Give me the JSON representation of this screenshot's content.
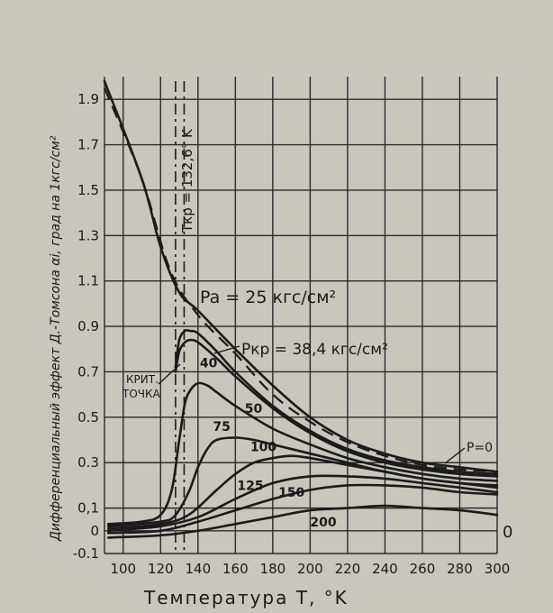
{
  "chart_data": {
    "type": "line",
    "ylabel": "Дифференциальный эффект Д.-Томсона αi, град на 1кгс/см²",
    "xlabel": "Температура T, °K",
    "xlim": [
      90,
      300
    ],
    "ylim": [
      -0.1,
      2.0
    ],
    "x_ticks": [
      100,
      120,
      140,
      160,
      180,
      200,
      220,
      240,
      260,
      280,
      300
    ],
    "x_tick_labels": [
      "100",
      "120",
      "140",
      "160",
      "180",
      "200",
      "220",
      "240",
      "260",
      "280",
      "300"
    ],
    "y_ticks": [
      -0.1,
      0,
      0.1,
      0.3,
      0.5,
      0.7,
      0.9,
      1.1,
      1.3,
      1.5,
      1.7,
      1.9
    ],
    "y_tick_labels": [
      "-0.1",
      "0",
      "0,1",
      "0.3",
      "0.5",
      "0.7",
      "0.9",
      "1.1",
      "1.3",
      "1.5",
      "1.7",
      "1.9"
    ],
    "grid": true,
    "annotations": {
      "critical_temperature": "Tкр = 132,6° K",
      "critical_point": [
        "КРИТ.",
        "ТОЧКА"
      ],
      "p_zero": "P=0",
      "zero_right": "0",
      "pressure_25": "Pa = 25 кгс/см²",
      "pressure_critical": "Pкр = 38,4 кгс/см²"
    },
    "series": [
      {
        "name": "P=0",
        "style": "dash",
        "x": [
          90,
          110,
          125,
          140,
          160,
          180,
          200,
          220,
          240,
          260,
          280,
          300
        ],
        "y": [
          1.95,
          1.55,
          1.15,
          0.95,
          0.78,
          0.6,
          0.48,
          0.39,
          0.33,
          0.29,
          0.27,
          0.26
        ]
      },
      {
        "name": "25",
        "style": "solid",
        "x": [
          90,
          110,
          120,
          130,
          140,
          160,
          180,
          200,
          220,
          240,
          260,
          280,
          300
        ],
        "y": [
          1.98,
          1.55,
          1.25,
          1.05,
          0.97,
          0.8,
          0.64,
          0.5,
          0.4,
          0.34,
          0.3,
          0.28,
          0.26
        ]
      },
      {
        "name": "38,4",
        "style": "solid",
        "x": [
          128,
          130,
          133,
          136,
          140,
          150,
          160,
          180,
          200,
          220,
          240,
          260,
          280,
          300
        ],
        "y": [
          0.72,
          0.84,
          0.88,
          0.88,
          0.87,
          0.79,
          0.7,
          0.55,
          0.44,
          0.36,
          0.31,
          0.28,
          0.26,
          0.25
        ]
      },
      {
        "name": "40",
        "style": "solid",
        "x": [
          128,
          130,
          133,
          136,
          140,
          150,
          160,
          180,
          200,
          220,
          240,
          260,
          280,
          300
        ],
        "y": [
          0.7,
          0.79,
          0.83,
          0.84,
          0.83,
          0.76,
          0.68,
          0.54,
          0.43,
          0.35,
          0.3,
          0.27,
          0.25,
          0.24
        ]
      },
      {
        "name": "50",
        "style": "solid",
        "x": [
          92,
          110,
          120,
          126,
          130,
          133,
          136,
          140,
          145,
          150,
          160,
          180,
          200,
          220,
          240,
          260,
          280,
          300
        ],
        "y": [
          0.03,
          0.04,
          0.07,
          0.18,
          0.4,
          0.56,
          0.62,
          0.65,
          0.64,
          0.61,
          0.55,
          0.45,
          0.38,
          0.32,
          0.28,
          0.25,
          0.23,
          0.22
        ]
      },
      {
        "name": "75",
        "style": "solid",
        "x": [
          92,
          120,
          128,
          135,
          140,
          145,
          150,
          160,
          170,
          180,
          200,
          220,
          240,
          260,
          280,
          300
        ],
        "y": [
          0.02,
          0.04,
          0.07,
          0.17,
          0.28,
          0.36,
          0.4,
          0.41,
          0.4,
          0.38,
          0.34,
          0.3,
          0.26,
          0.23,
          0.21,
          0.2
        ]
      },
      {
        "name": "100",
        "style": "solid",
        "x": [
          92,
          120,
          135,
          150,
          160,
          170,
          180,
          190,
          200,
          220,
          240,
          260,
          280,
          300
        ],
        "y": [
          0.01,
          0.03,
          0.07,
          0.18,
          0.25,
          0.3,
          0.32,
          0.33,
          0.32,
          0.29,
          0.26,
          0.23,
          0.21,
          0.19
        ]
      },
      {
        "name": "125",
        "style": "solid",
        "x": [
          92,
          120,
          140,
          160,
          180,
          200,
          220,
          240,
          260,
          280,
          300
        ],
        "y": [
          0.0,
          0.02,
          0.06,
          0.14,
          0.21,
          0.24,
          0.24,
          0.23,
          0.21,
          0.19,
          0.17
        ]
      },
      {
        "name": "150",
        "style": "solid",
        "x": [
          92,
          120,
          140,
          160,
          180,
          200,
          220,
          240,
          260,
          280,
          300
        ],
        "y": [
          -0.01,
          0.0,
          0.04,
          0.09,
          0.14,
          0.18,
          0.2,
          0.2,
          0.19,
          0.17,
          0.16
        ]
      },
      {
        "name": "200",
        "style": "solid",
        "x": [
          92,
          120,
          140,
          160,
          180,
          200,
          220,
          240,
          260,
          280,
          300
        ],
        "y": [
          -0.03,
          -0.02,
          0.0,
          0.03,
          0.06,
          0.09,
          0.1,
          0.11,
          0.1,
          0.09,
          0.07
        ]
      }
    ],
    "curve_labels": [
      {
        "text": "40",
        "series": "40",
        "x": 141,
        "y": 0.72
      },
      {
        "text": "50",
        "series": "50",
        "x": 165,
        "y": 0.52
      },
      {
        "text": "75",
        "series": "75",
        "x": 148,
        "y": 0.44
      },
      {
        "text": "100",
        "series": "100",
        "x": 168,
        "y": 0.35
      },
      {
        "text": "125",
        "series": "125",
        "x": 161,
        "y": 0.18
      },
      {
        "text": "150",
        "series": "150",
        "x": 183,
        "y": 0.15
      },
      {
        "text": "200",
        "series": "200",
        "x": 200,
        "y": 0.02
      }
    ]
  }
}
